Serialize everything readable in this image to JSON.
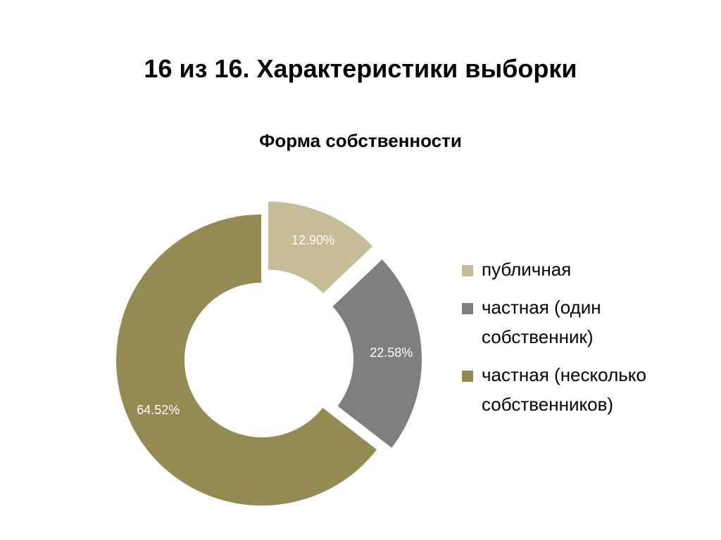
{
  "slide": {
    "title": "16 из 16. Характеристики выборки"
  },
  "chart_data": {
    "type": "pie",
    "style": "donut",
    "title": "Форма собственности",
    "legend_position": "right",
    "series": [
      {
        "name": "публичная",
        "value": 12.9,
        "label": "12.90%",
        "color": "#c4bd97",
        "exploded": true
      },
      {
        "name": "частная (один собственник)",
        "value": 22.58,
        "label": "22.58%",
        "color": "#7f7f7f",
        "exploded": true
      },
      {
        "name": "частная (несколько собственников)",
        "value": 64.52,
        "label": "64.52%",
        "color": "#948a54",
        "exploded": false
      }
    ]
  }
}
